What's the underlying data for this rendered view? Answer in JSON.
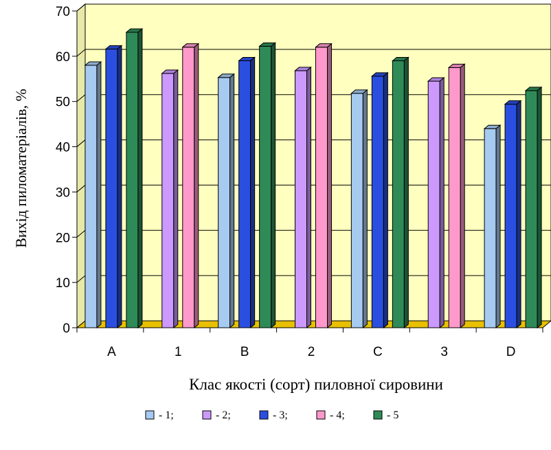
{
  "chart_data": {
    "type": "bar",
    "title": "",
    "xlabel": "Клас якості (сорт) пиловної сировини",
    "ylabel": "Вихід пиломатеріалів, %",
    "categories": [
      "A",
      "1",
      "B",
      "2",
      "C",
      "3",
      "D"
    ],
    "ylim": [
      0,
      70
    ],
    "yticks": [
      0,
      10,
      20,
      30,
      40,
      50,
      60,
      70
    ],
    "grid": true,
    "legend_position": "bottom",
    "series": [
      {
        "name": "- 1;",
        "color": "#a6caf0",
        "values": [
          58,
          null,
          55.3,
          null,
          51.8,
          null,
          44
        ]
      },
      {
        "name": "- 2;",
        "color": "#cc99ff",
        "values": [
          null,
          56.2,
          null,
          56.8,
          null,
          54.5,
          null
        ]
      },
      {
        "name": "- 3;",
        "color": "#2a4fe0",
        "values": [
          61.6,
          null,
          59,
          null,
          55.6,
          null,
          49.4
        ]
      },
      {
        "name": "- 4;",
        "color": "#ff99cc",
        "values": [
          null,
          62,
          null,
          62,
          null,
          57.5,
          null
        ]
      },
      {
        "name": "- 5",
        "color": "#2e8b57",
        "values": [
          65.3,
          null,
          62.2,
          null,
          59,
          null,
          52.4
        ]
      }
    ]
  },
  "colors": {
    "plot_background": "#ffffc0",
    "floor": "#e8c000",
    "gridline": "#000000"
  }
}
